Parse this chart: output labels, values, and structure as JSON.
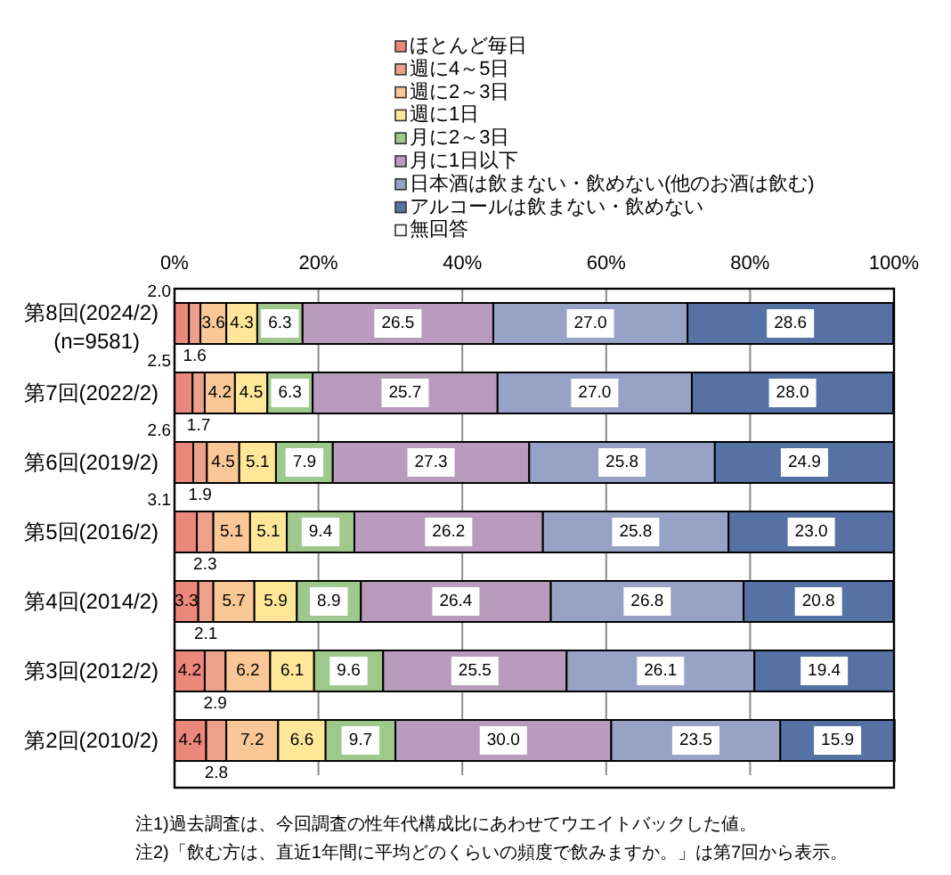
{
  "chart_data": {
    "type": "bar",
    "orientation": "horizontal",
    "stacked": true,
    "categories": [
      "第8回(2024/2)\n(n=9581)",
      "第7回(2022/2)",
      "第6回(2019/2)",
      "第5回(2016/2)",
      "第4回(2014/2)",
      "第3回(2012/2)",
      "第2回(2010/2)"
    ],
    "series": [
      {
        "name": "ほとんど毎日",
        "color": "#ec877b",
        "values": [
          2.0,
          2.5,
          2.6,
          3.1,
          3.3,
          4.2,
          4.4
        ],
        "value_labels": [
          "2.0",
          "2.5",
          "2.6",
          "3.1",
          "3.3",
          "4.2",
          "4.4"
        ]
      },
      {
        "name": "週に4～5日",
        "color": "#eda18c",
        "values": [
          1.6,
          1.7,
          1.9,
          2.3,
          2.1,
          2.9,
          2.8
        ],
        "value_labels": [
          "1.6",
          "1.7",
          "1.9",
          "2.3",
          "2.1",
          "2.9",
          "2.8"
        ]
      },
      {
        "name": "週に2～3日",
        "color": "#fac797",
        "values": [
          3.6,
          4.2,
          4.5,
          5.1,
          5.7,
          6.2,
          7.2
        ],
        "value_labels": [
          "3.6",
          "4.2",
          "4.5",
          "5.1",
          "5.7",
          "6.2",
          "7.2"
        ]
      },
      {
        "name": "週に1日",
        "color": "#fee799",
        "values": [
          4.3,
          4.5,
          5.1,
          5.1,
          5.9,
          6.1,
          6.6
        ],
        "value_labels": [
          "4.3",
          "4.5",
          "5.1",
          "5.1",
          "5.9",
          "6.1",
          "6.6"
        ]
      },
      {
        "name": "月に2～3日",
        "color": "#9fc98c",
        "values": [
          6.3,
          6.3,
          7.9,
          9.4,
          8.9,
          9.6,
          9.7
        ],
        "value_labels": [
          "6.3",
          "6.3",
          "7.9",
          "9.4",
          "8.9",
          "9.6",
          "9.7"
        ]
      },
      {
        "name": "月に1日以下",
        "color": "#b99bbd",
        "values": [
          26.5,
          25.7,
          27.3,
          26.2,
          26.4,
          25.5,
          30.0
        ],
        "value_labels": [
          "26.5",
          "25.7",
          "27.3",
          "26.2",
          "26.4",
          "25.5",
          "30.0"
        ]
      },
      {
        "name": "日本酒は飲まない・飲めない(他のお酒は飲む)",
        "color": "#98a2c6",
        "values": [
          27.0,
          27.0,
          25.8,
          25.8,
          26.8,
          26.1,
          23.5
        ],
        "value_labels": [
          "27.0",
          "27.0",
          "25.8",
          "25.8",
          "26.8",
          "26.1",
          "23.5"
        ]
      },
      {
        "name": "アルコールは飲まない・飲めない",
        "color": "#5672a5",
        "values": [
          28.6,
          28.0,
          24.9,
          23.0,
          20.8,
          19.4,
          15.9
        ],
        "value_labels": [
          "28.6",
          "28.0",
          "24.9",
          "23.0",
          "20.8",
          "19.4",
          "15.9"
        ]
      },
      {
        "name": "無回答",
        "color": "#ffffff",
        "values": [
          null,
          null,
          null,
          null,
          null,
          null,
          null
        ]
      }
    ],
    "xlim": [
      0,
      100
    ],
    "xticks": [
      {
        "value": 0,
        "label": "0%"
      },
      {
        "value": 20,
        "label": "20%"
      },
      {
        "value": 40,
        "label": "40%"
      },
      {
        "value": 60,
        "label": "60%"
      },
      {
        "value": 80,
        "label": "80%"
      },
      {
        "value": 100,
        "label": "100%"
      }
    ],
    "grid": "x",
    "legend": "top",
    "annotations": [
      "注1)過去調査は、今回調査の性年代構成比にあわせてウエイトバックした値。",
      "注2)「飲む方は、直近1年間に平均どのくらいの頻度で飲みますか。」は第7回から表示。"
    ]
  }
}
